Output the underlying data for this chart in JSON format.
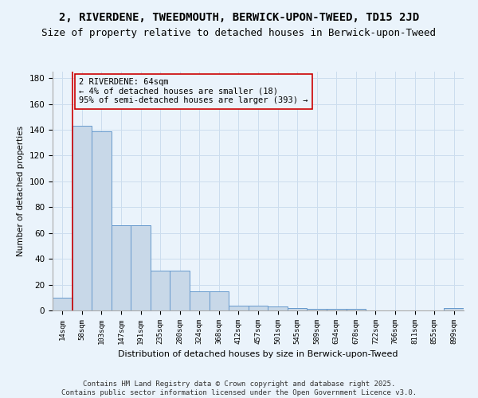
{
  "title": "2, RIVERDENE, TWEEDMOUTH, BERWICK-UPON-TWEED, TD15 2JD",
  "subtitle": "Size of property relative to detached houses in Berwick-upon-Tweed",
  "xlabel": "Distribution of detached houses by size in Berwick-upon-Tweed",
  "ylabel": "Number of detached properties",
  "bin_labels": [
    "14sqm",
    "58sqm",
    "103sqm",
    "147sqm",
    "191sqm",
    "235sqm",
    "280sqm",
    "324sqm",
    "368sqm",
    "412sqm",
    "457sqm",
    "501sqm",
    "545sqm",
    "589sqm",
    "634sqm",
    "678sqm",
    "722sqm",
    "766sqm",
    "811sqm",
    "855sqm",
    "899sqm"
  ],
  "bar_values": [
    10,
    143,
    139,
    66,
    66,
    31,
    31,
    15,
    15,
    4,
    4,
    3,
    2,
    1,
    1,
    1,
    0,
    0,
    0,
    0,
    2
  ],
  "bar_color": "#c8d8e8",
  "bar_edgecolor": "#6699cc",
  "grid_color": "#ccddee",
  "background_color": "#eaf3fb",
  "annotation_box_text": "2 RIVERDENE: 64sqm\n← 4% of detached houses are smaller (18)\n95% of semi-detached houses are larger (393) →",
  "annotation_box_edgecolor": "#cc0000",
  "vline_color": "#cc0000",
  "ylim": [
    0,
    185
  ],
  "yticks": [
    0,
    20,
    40,
    60,
    80,
    100,
    120,
    140,
    160,
    180
  ],
  "footer": "Contains HM Land Registry data © Crown copyright and database right 2025.\nContains public sector information licensed under the Open Government Licence v3.0.",
  "title_fontsize": 10,
  "subtitle_fontsize": 9,
  "annotation_fontsize": 7.5,
  "footer_fontsize": 6.5
}
